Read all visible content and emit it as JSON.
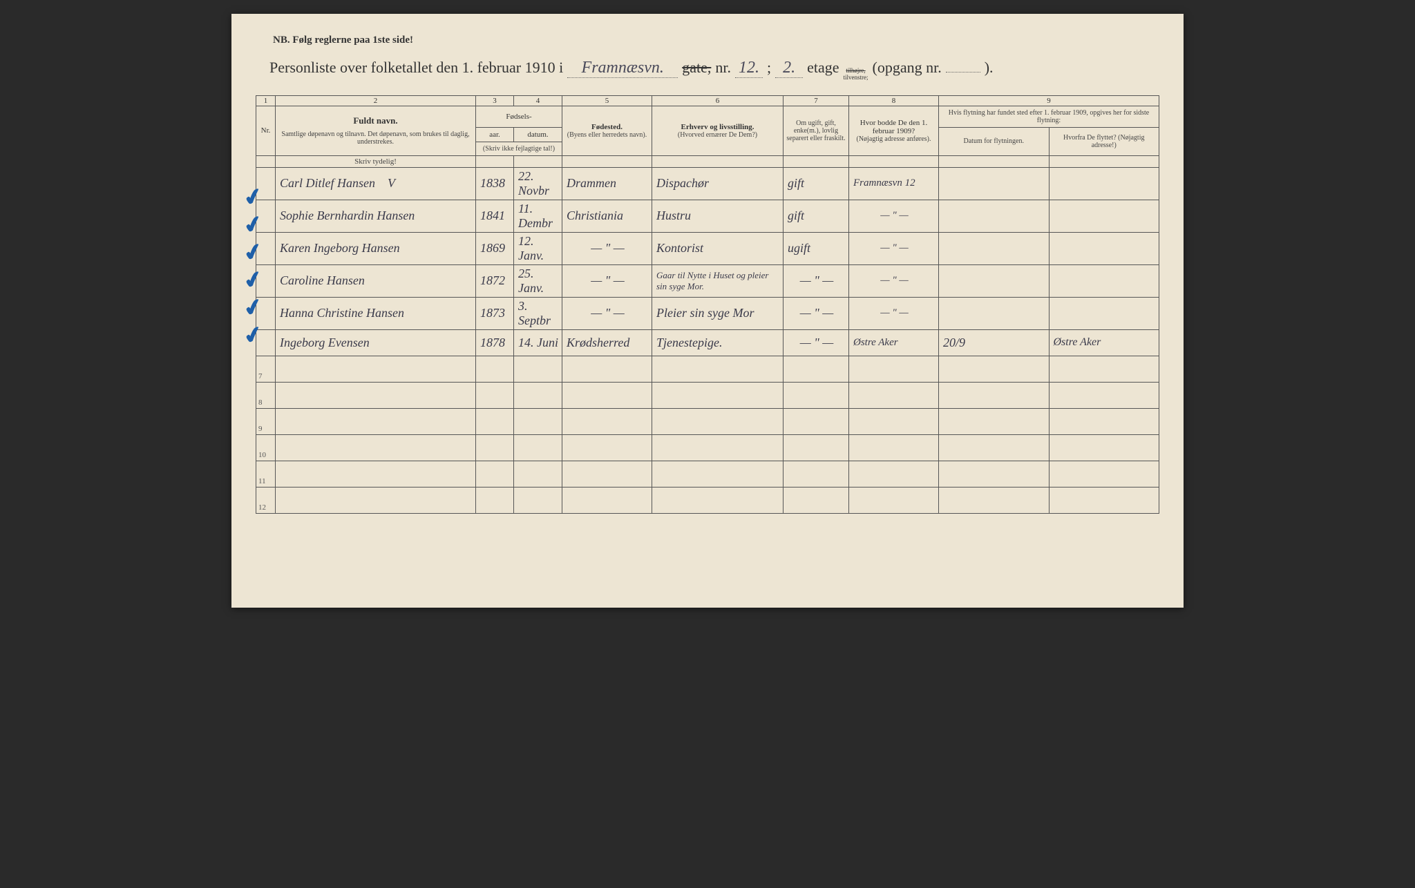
{
  "header": {
    "nb": "NB. Følg reglerne paa 1ste side!",
    "title_prefix": "Personliste over folketallet den 1. februar 1910 i",
    "street": "Framnæsvn.",
    "gate_word": "gate,",
    "nr_label": "nr.",
    "nr": "12.",
    "semicolon": ";",
    "floor": "2.",
    "etage_label": "etage",
    "side_top": "tilhøjre,",
    "side_bottom": "tilvenstre;",
    "opgang_label": "(opgang nr.",
    "opgang": "",
    "opgang_close": ")."
  },
  "columns": {
    "nums": [
      "1",
      "2",
      "3",
      "4",
      "5",
      "6",
      "7",
      "8",
      "9"
    ],
    "nr": "Nr.",
    "name": "Fuldt navn.",
    "name_sub": "Samtlige døpenavn og tilnavn. Det døpenavn, som brukes til daglig, understrekes.",
    "fodsels": "Fødsels-",
    "year": "aar.",
    "date": "datum.",
    "year_sub": "(Skriv ikke fejlagtige tal!)",
    "place": "Fødested.",
    "place_sub": "(Byens eller herredets navn).",
    "occ": "Erhverv og livsstilling.",
    "occ_sub": "(Hvorved ernærer De Dem?)",
    "marital": "Om ugift, gift, enke(m.), lovlig separert eller fraskilt.",
    "addr": "Hvor bodde De den 1. februar 1909?",
    "addr_sub": "(Nøjagtig adresse anføres).",
    "move": "Hvis flytning har fundet sted efter 1. februar 1909, opgives her for sidste flytning:",
    "move_when": "Datum for flytningen.",
    "move_where": "Hvorfra De flyttet? (Nøjagtig adresse!)",
    "skriv": "Skriv tydelig!"
  },
  "rows": [
    {
      "check": true,
      "name": "Carl Ditlef Hansen",
      "v_mark": "V",
      "year": "1838",
      "date": "22. Novbr",
      "place": "Drammen",
      "occ": "Dispachør",
      "marital": "gift",
      "addr": "Framnæsvn 12",
      "when": "",
      "where": ""
    },
    {
      "check": true,
      "name": "Sophie Bernhardin Hansen",
      "year": "1841",
      "date": "11. Dembr",
      "place": "Christiania",
      "occ": "Hustru",
      "marital": "gift",
      "addr": "— \" —",
      "when": "",
      "where": ""
    },
    {
      "check": true,
      "name": "Karen Ingeborg Hansen",
      "year": "1869",
      "date": "12. Janv.",
      "place": "— \" —",
      "occ": "Kontorist",
      "marital": "ugift",
      "addr": "— \" —",
      "when": "",
      "where": ""
    },
    {
      "check": true,
      "name": "Caroline Hansen",
      "year": "1872",
      "date": "25. Janv.",
      "place": "— \" —",
      "occ": "Gaar til Nytte i Huset og pleier sin syge Mor.",
      "marital": "— \" —",
      "addr": "— \" —",
      "when": "",
      "where": ""
    },
    {
      "check": true,
      "name": "Hanna Christine Hansen",
      "year": "1873",
      "date": "3. Septbr",
      "place": "— \" —",
      "occ": "Pleier sin syge Mor",
      "marital": "— \" —",
      "addr": "— \" —",
      "when": "",
      "where": ""
    },
    {
      "check": true,
      "name": "Ingeborg Evensen",
      "year": "1878",
      "date": "14. Juni",
      "place": "Krødsherred",
      "occ": "Tjenestepige.",
      "marital": "— \" —",
      "addr": "Østre Aker",
      "when": "20/9",
      "where": "Østre Aker"
    }
  ],
  "empty_rows": [
    "7",
    "8",
    "9",
    "10",
    "11",
    "12"
  ],
  "styling": {
    "paper_bg": "#ede5d3",
    "ink": "#333333",
    "hand_ink": "#3a3a4a",
    "check_color": "#1e5fa8",
    "border": "#555555"
  }
}
